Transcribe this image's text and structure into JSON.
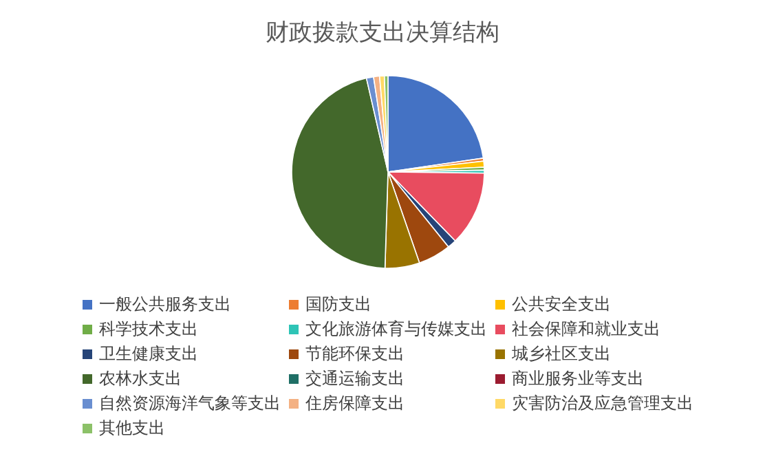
{
  "chart_data": {
    "type": "pie",
    "title": "财政拨款支出决算结构",
    "categories": [
      "一般公共服务支出",
      "国防支出",
      "公共安全支出",
      "科学技术支出",
      "文化旅游体育与传媒支出",
      "社会保障和就业支出",
      "卫生健康支出",
      "节能环保支出",
      "城乡社区支出",
      "农林水支出",
      "交通运输支出",
      "商业服务业等支出",
      "自然资源海洋气象等支出",
      "住房保障支出",
      "灾害防治及应急管理支出",
      "其他支出"
    ],
    "values": [
      22.7,
      0.5,
      1.0,
      0.5,
      0.5,
      12.5,
      1.5,
      5.5,
      5.8,
      45.9,
      0,
      0,
      1.2,
      1.0,
      0.8,
      0.6
    ],
    "colors": [
      "#4472c4",
      "#ed7d31",
      "#ffc000",
      "#70ad47",
      "#2ec4b6",
      "#e84c5f",
      "#264478",
      "#9e480e",
      "#997300",
      "#43682b",
      "#1f6f66",
      "#9b1b30",
      "#698ed0",
      "#f4b183",
      "#ffd966",
      "#8cc168"
    ],
    "legend": "bottom"
  }
}
